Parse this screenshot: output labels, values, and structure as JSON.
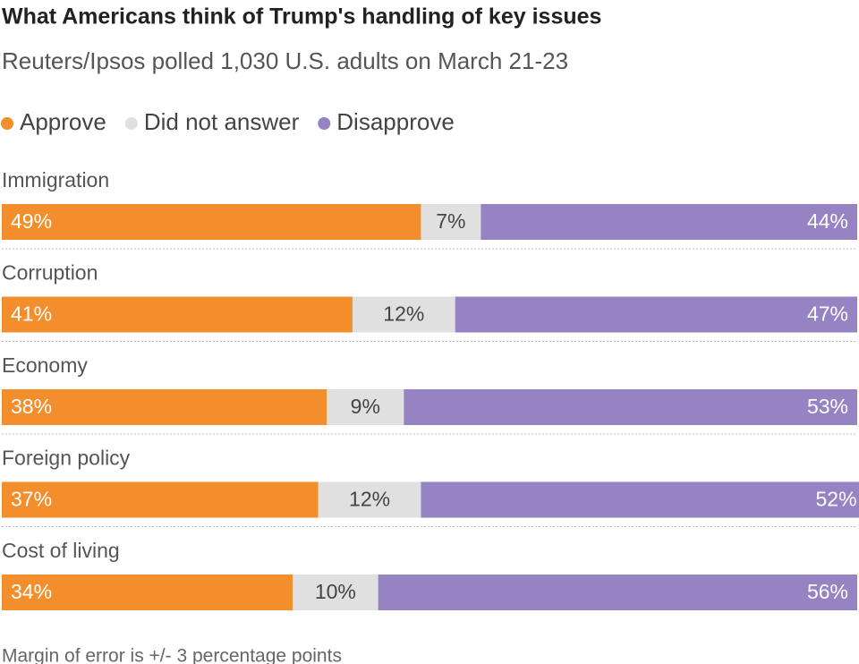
{
  "chart_data": {
    "type": "stacked-bar-horizontal",
    "title": "What Americans think of Trump's handling of key issues",
    "subtitle": "Reuters/Ipsos polled 1,030 U.S. adults on March 21-23",
    "note": "Margin of error is +/- 3 percentage points",
    "categories": [
      "Immigration",
      "Corruption",
      "Economy",
      "Foreign policy",
      "Cost of living"
    ],
    "xlim": [
      0,
      100
    ],
    "series": [
      {
        "name": "Approve",
        "color": "#f28e2b",
        "values": [
          49,
          41,
          38,
          37,
          34
        ],
        "value_labels": [
          "49%",
          "41%",
          "38%",
          "37%",
          "34%"
        ]
      },
      {
        "name": "Did not answer",
        "color": "#e0e0e0",
        "values": [
          7,
          12,
          9,
          12,
          10
        ],
        "value_labels": [
          "7%",
          "12%",
          "9%",
          "12%",
          "10%"
        ]
      },
      {
        "name": "Disapprove",
        "color": "#9583c3",
        "values": [
          44,
          47,
          53,
          52,
          56
        ],
        "value_labels": [
          "44%",
          "47%",
          "53%",
          "52%",
          "56%"
        ]
      }
    ]
  }
}
